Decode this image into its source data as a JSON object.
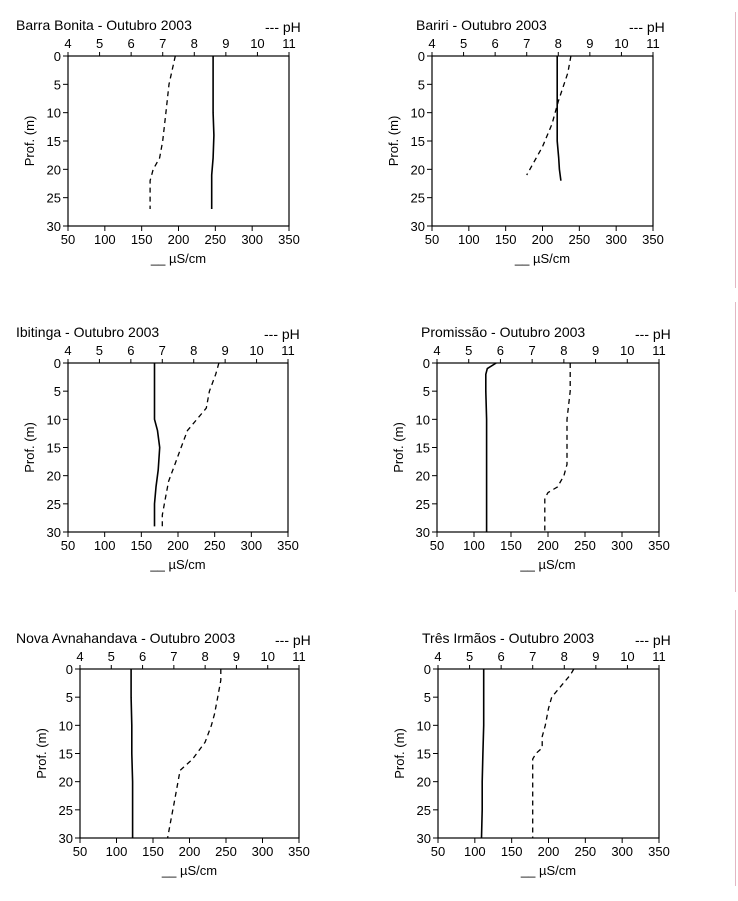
{
  "figure": {
    "colors": {
      "ink": "#000000",
      "background": "#ffffff",
      "edge_strip": "#e3b6c3"
    }
  },
  "chart_data": [
    {
      "type": "line",
      "title": "Barra Bonita - Outubro 2003",
      "legend_ph": "--- pH",
      "xlabel_bottom": "__ µS/cm",
      "ylabel": "Prof. (m)",
      "xlim_bottom": [
        50,
        350
      ],
      "xticks_bottom": [
        50,
        100,
        150,
        200,
        250,
        300,
        350
      ],
      "xlim_top": [
        4,
        11
      ],
      "xticks_top": [
        4,
        5,
        6,
        7,
        8,
        9,
        10,
        11
      ],
      "ylim": [
        30,
        0
      ],
      "yticks": [
        0,
        5,
        10,
        15,
        20,
        25,
        30
      ],
      "grid": false,
      "series": [
        {
          "name": "µS/cm",
          "style": "solid",
          "axis": "bottom",
          "points": [
            [
              247,
              0
            ],
            [
              247,
              5
            ],
            [
              247,
              10
            ],
            [
              248,
              14
            ],
            [
              247,
              18
            ],
            [
              245,
              21
            ],
            [
              245,
              24
            ],
            [
              245,
              27
            ]
          ]
        },
        {
          "name": "pH",
          "style": "dashed",
          "axis": "top",
          "points": [
            [
              7.4,
              0
            ],
            [
              7.2,
              5
            ],
            [
              7.1,
              10
            ],
            [
              7.0,
              15
            ],
            [
              6.9,
              18
            ],
            [
              6.7,
              20
            ],
            [
              6.6,
              22
            ],
            [
              6.6,
              25
            ],
            [
              6.6,
              27
            ]
          ]
        }
      ]
    },
    {
      "type": "line",
      "title": "Bariri - Outubro 2003",
      "legend_ph": "--- pH",
      "xlabel_bottom": "__ µS/cm",
      "ylabel": "Prof. (m)",
      "xlim_bottom": [
        50,
        350
      ],
      "xticks_bottom": [
        50,
        100,
        150,
        200,
        250,
        300,
        350
      ],
      "xlim_top": [
        4,
        11
      ],
      "xticks_top": [
        4,
        5,
        6,
        7,
        8,
        9,
        10,
        11
      ],
      "ylim": [
        30,
        0
      ],
      "yticks": [
        0,
        5,
        10,
        15,
        20,
        25,
        30
      ],
      "grid": false,
      "series": [
        {
          "name": "µS/cm",
          "style": "solid",
          "axis": "bottom",
          "points": [
            [
              220,
              0
            ],
            [
              220,
              5
            ],
            [
              220,
              10
            ],
            [
              220,
              15
            ],
            [
              222,
              18
            ],
            [
              223,
              20
            ],
            [
              225,
              22
            ]
          ]
        },
        {
          "name": "pH",
          "style": "dashed",
          "axis": "top",
          "points": [
            [
              8.4,
              0
            ],
            [
              8.3,
              3
            ],
            [
              8.0,
              8
            ],
            [
              7.8,
              12
            ],
            [
              7.5,
              16
            ],
            [
              7.3,
              18
            ],
            [
              7.0,
              21
            ]
          ]
        }
      ]
    },
    {
      "type": "line",
      "title": "Ibitinga - Outubro 2003",
      "legend_ph": "--- pH",
      "xlabel_bottom": "__ µS/cm",
      "ylabel": "Prof. (m)",
      "xlim_bottom": [
        50,
        350
      ],
      "xticks_bottom": [
        50,
        100,
        150,
        200,
        250,
        300,
        350
      ],
      "xlim_top": [
        4,
        11
      ],
      "xticks_top": [
        4,
        5,
        6,
        7,
        8,
        9,
        10,
        11
      ],
      "ylim": [
        30,
        0
      ],
      "yticks": [
        0,
        5,
        10,
        15,
        20,
        25,
        30
      ],
      "grid": false,
      "series": [
        {
          "name": "µS/cm",
          "style": "solid",
          "axis": "bottom",
          "points": [
            [
              168,
              0
            ],
            [
              168,
              5
            ],
            [
              168,
              10
            ],
            [
              172,
              12
            ],
            [
              175,
              15
            ],
            [
              173,
              19
            ],
            [
              170,
              22
            ],
            [
              168,
              25
            ],
            [
              168,
              29
            ]
          ]
        },
        {
          "name": "pH",
          "style": "dashed",
          "axis": "top",
          "points": [
            [
              8.8,
              0
            ],
            [
              8.7,
              2
            ],
            [
              8.5,
              5
            ],
            [
              8.4,
              8
            ],
            [
              8.1,
              10
            ],
            [
              7.8,
              12
            ],
            [
              7.6,
              15
            ],
            [
              7.4,
              18
            ],
            [
              7.2,
              21
            ],
            [
              7.1,
              24
            ],
            [
              7.0,
              27
            ],
            [
              7.0,
              29
            ]
          ]
        }
      ]
    },
    {
      "type": "line",
      "title": "Promissão - Outubro 2003",
      "legend_ph": "--- pH",
      "xlabel_bottom": "__ µS/cm",
      "ylabel": "Prof. (m)",
      "xlim_bottom": [
        50,
        350
      ],
      "xticks_bottom": [
        50,
        100,
        150,
        200,
        250,
        300,
        350
      ],
      "xlim_top": [
        4,
        11
      ],
      "xticks_top": [
        4,
        5,
        6,
        7,
        8,
        9,
        10,
        11
      ],
      "ylim": [
        30,
        0
      ],
      "yticks": [
        0,
        5,
        10,
        15,
        20,
        25,
        30
      ],
      "grid": false,
      "series": [
        {
          "name": "µS/cm",
          "style": "solid",
          "axis": "bottom",
          "points": [
            [
              130,
              0
            ],
            [
              118,
              1
            ],
            [
              116,
              2
            ],
            [
              116,
              5
            ],
            [
              117,
              10
            ],
            [
              117,
              15
            ],
            [
              117,
              20
            ],
            [
              117,
              25
            ],
            [
              117,
              30
            ]
          ]
        },
        {
          "name": "pH",
          "style": "dashed",
          "axis": "top",
          "points": [
            [
              8.2,
              0
            ],
            [
              8.2,
              5
            ],
            [
              8.1,
              10
            ],
            [
              8.1,
              15
            ],
            [
              8.1,
              18
            ],
            [
              8.0,
              20
            ],
            [
              7.8,
              22
            ],
            [
              7.5,
              23
            ],
            [
              7.4,
              24
            ],
            [
              7.4,
              27
            ],
            [
              7.4,
              30
            ]
          ]
        }
      ]
    },
    {
      "type": "line",
      "title": "Nova Avnahandava - Outubro 2003",
      "legend_ph": "--- pH",
      "xlabel_bottom": "__ µS/cm",
      "ylabel": "Prof. (m)",
      "xlim_bottom": [
        50,
        350
      ],
      "xticks_bottom": [
        50,
        100,
        150,
        200,
        250,
        300,
        350
      ],
      "xlim_top": [
        4,
        11
      ],
      "xticks_top": [
        4,
        5,
        6,
        7,
        8,
        9,
        10,
        11
      ],
      "ylim": [
        30,
        0
      ],
      "yticks": [
        0,
        5,
        10,
        15,
        20,
        25,
        30
      ],
      "grid": false,
      "series": [
        {
          "name": "µS/cm",
          "style": "solid",
          "axis": "bottom",
          "points": [
            [
              120,
              0
            ],
            [
              120,
              5
            ],
            [
              121,
              10
            ],
            [
              121,
              15
            ],
            [
              122,
              20
            ],
            [
              122,
              25
            ],
            [
              122,
              30
            ]
          ]
        },
        {
          "name": "pH",
          "style": "dashed",
          "axis": "top",
          "points": [
            [
              8.5,
              0
            ],
            [
              8.5,
              2
            ],
            [
              8.4,
              5
            ],
            [
              8.3,
              8
            ],
            [
              8.2,
              10
            ],
            [
              8.0,
              13
            ],
            [
              7.6,
              16
            ],
            [
              7.2,
              18
            ],
            [
              7.1,
              21
            ],
            [
              7.0,
              24
            ],
            [
              6.9,
              27
            ],
            [
              6.8,
              30
            ]
          ]
        }
      ]
    },
    {
      "type": "line",
      "title": "Três Irmãos - Outubro 2003",
      "legend_ph": "--- pH",
      "xlabel_bottom": "__ µS/cm",
      "ylabel": "Prof. (m)",
      "xlim_bottom": [
        50,
        350
      ],
      "xticks_bottom": [
        50,
        100,
        150,
        200,
        250,
        300,
        350
      ],
      "xlim_top": [
        4,
        11
      ],
      "xticks_top": [
        4,
        5,
        6,
        7,
        8,
        9,
        10,
        11
      ],
      "ylim": [
        30,
        0
      ],
      "yticks": [
        0,
        5,
        10,
        15,
        20,
        25,
        30
      ],
      "grid": false,
      "series": [
        {
          "name": "µS/cm",
          "style": "solid",
          "axis": "bottom",
          "points": [
            [
              112,
              0
            ],
            [
              112,
              5
            ],
            [
              112,
              10
            ],
            [
              111,
              15
            ],
            [
              110,
              20
            ],
            [
              110,
              25
            ],
            [
              109,
              30
            ]
          ]
        },
        {
          "name": "pH",
          "style": "dashed",
          "axis": "top",
          "points": [
            [
              8.3,
              0
            ],
            [
              8.2,
              1
            ],
            [
              7.9,
              3
            ],
            [
              7.6,
              5
            ],
            [
              7.5,
              7
            ],
            [
              7.4,
              10
            ],
            [
              7.3,
              12
            ],
            [
              7.3,
              14
            ],
            [
              7.1,
              15
            ],
            [
              7.0,
              16
            ],
            [
              7.0,
              20
            ],
            [
              7.0,
              25
            ],
            [
              7.0,
              30
            ]
          ]
        }
      ]
    }
  ]
}
